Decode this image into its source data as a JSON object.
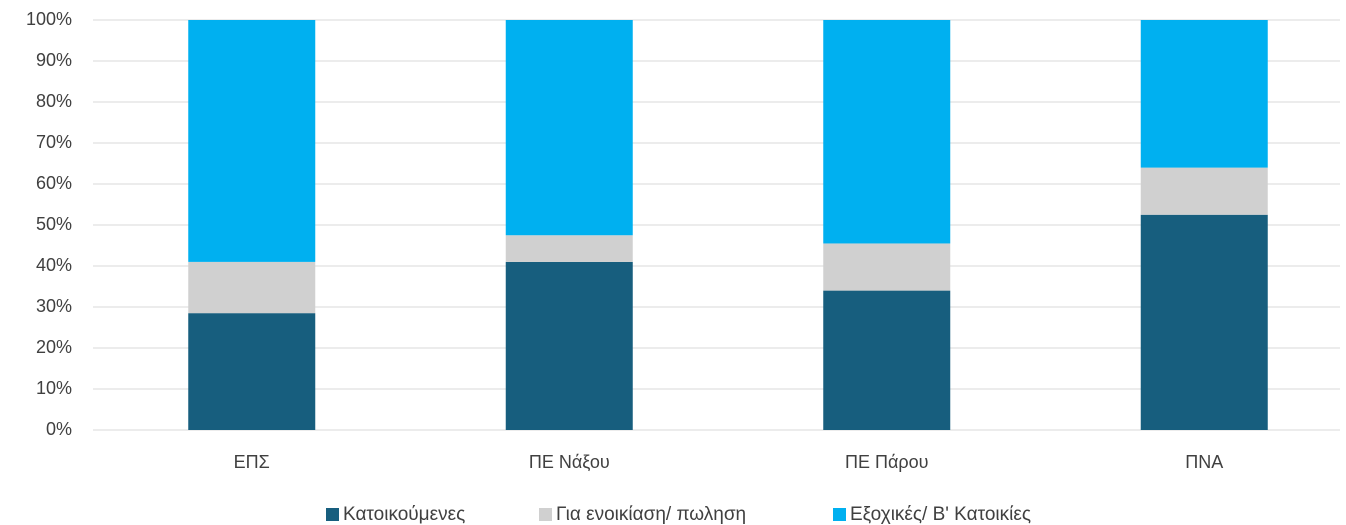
{
  "chart_data": {
    "type": "stacked_bar",
    "categories": [
      "ΕΠΣ",
      "ΠΕ Νάξου",
      "ΠΕ Πάρου",
      "ΠΝΑ"
    ],
    "series": [
      {
        "name": "Κατοικούμενες",
        "color": "#175e7e",
        "values": [
          28.5,
          41,
          34,
          52.5
        ]
      },
      {
        "name": "Για ενοικίαση/ πωληση",
        "color": "#d0d0d0",
        "values": [
          12.5,
          6.5,
          11.5,
          11.5
        ]
      },
      {
        "name": "Εξοχικές/ Β' Κατοικίες",
        "color": "#00b0f0",
        "values": [
          59,
          52.5,
          54.5,
          36
        ]
      }
    ],
    "ylim": [
      0,
      100
    ],
    "yticks": [
      {
        "value": 0,
        "label": "0%"
      },
      {
        "value": 10,
        "label": "10%"
      },
      {
        "value": 20,
        "label": "20%"
      },
      {
        "value": 30,
        "label": "30%"
      },
      {
        "value": 40,
        "label": "40%"
      },
      {
        "value": 50,
        "label": "50%"
      },
      {
        "value": 60,
        "label": "60%"
      },
      {
        "value": 70,
        "label": "70%"
      },
      {
        "value": 80,
        "label": "80%"
      },
      {
        "value": 90,
        "label": "90%"
      },
      {
        "value": 100,
        "label": "100%"
      }
    ],
    "grid": true,
    "legend": "bottom"
  }
}
